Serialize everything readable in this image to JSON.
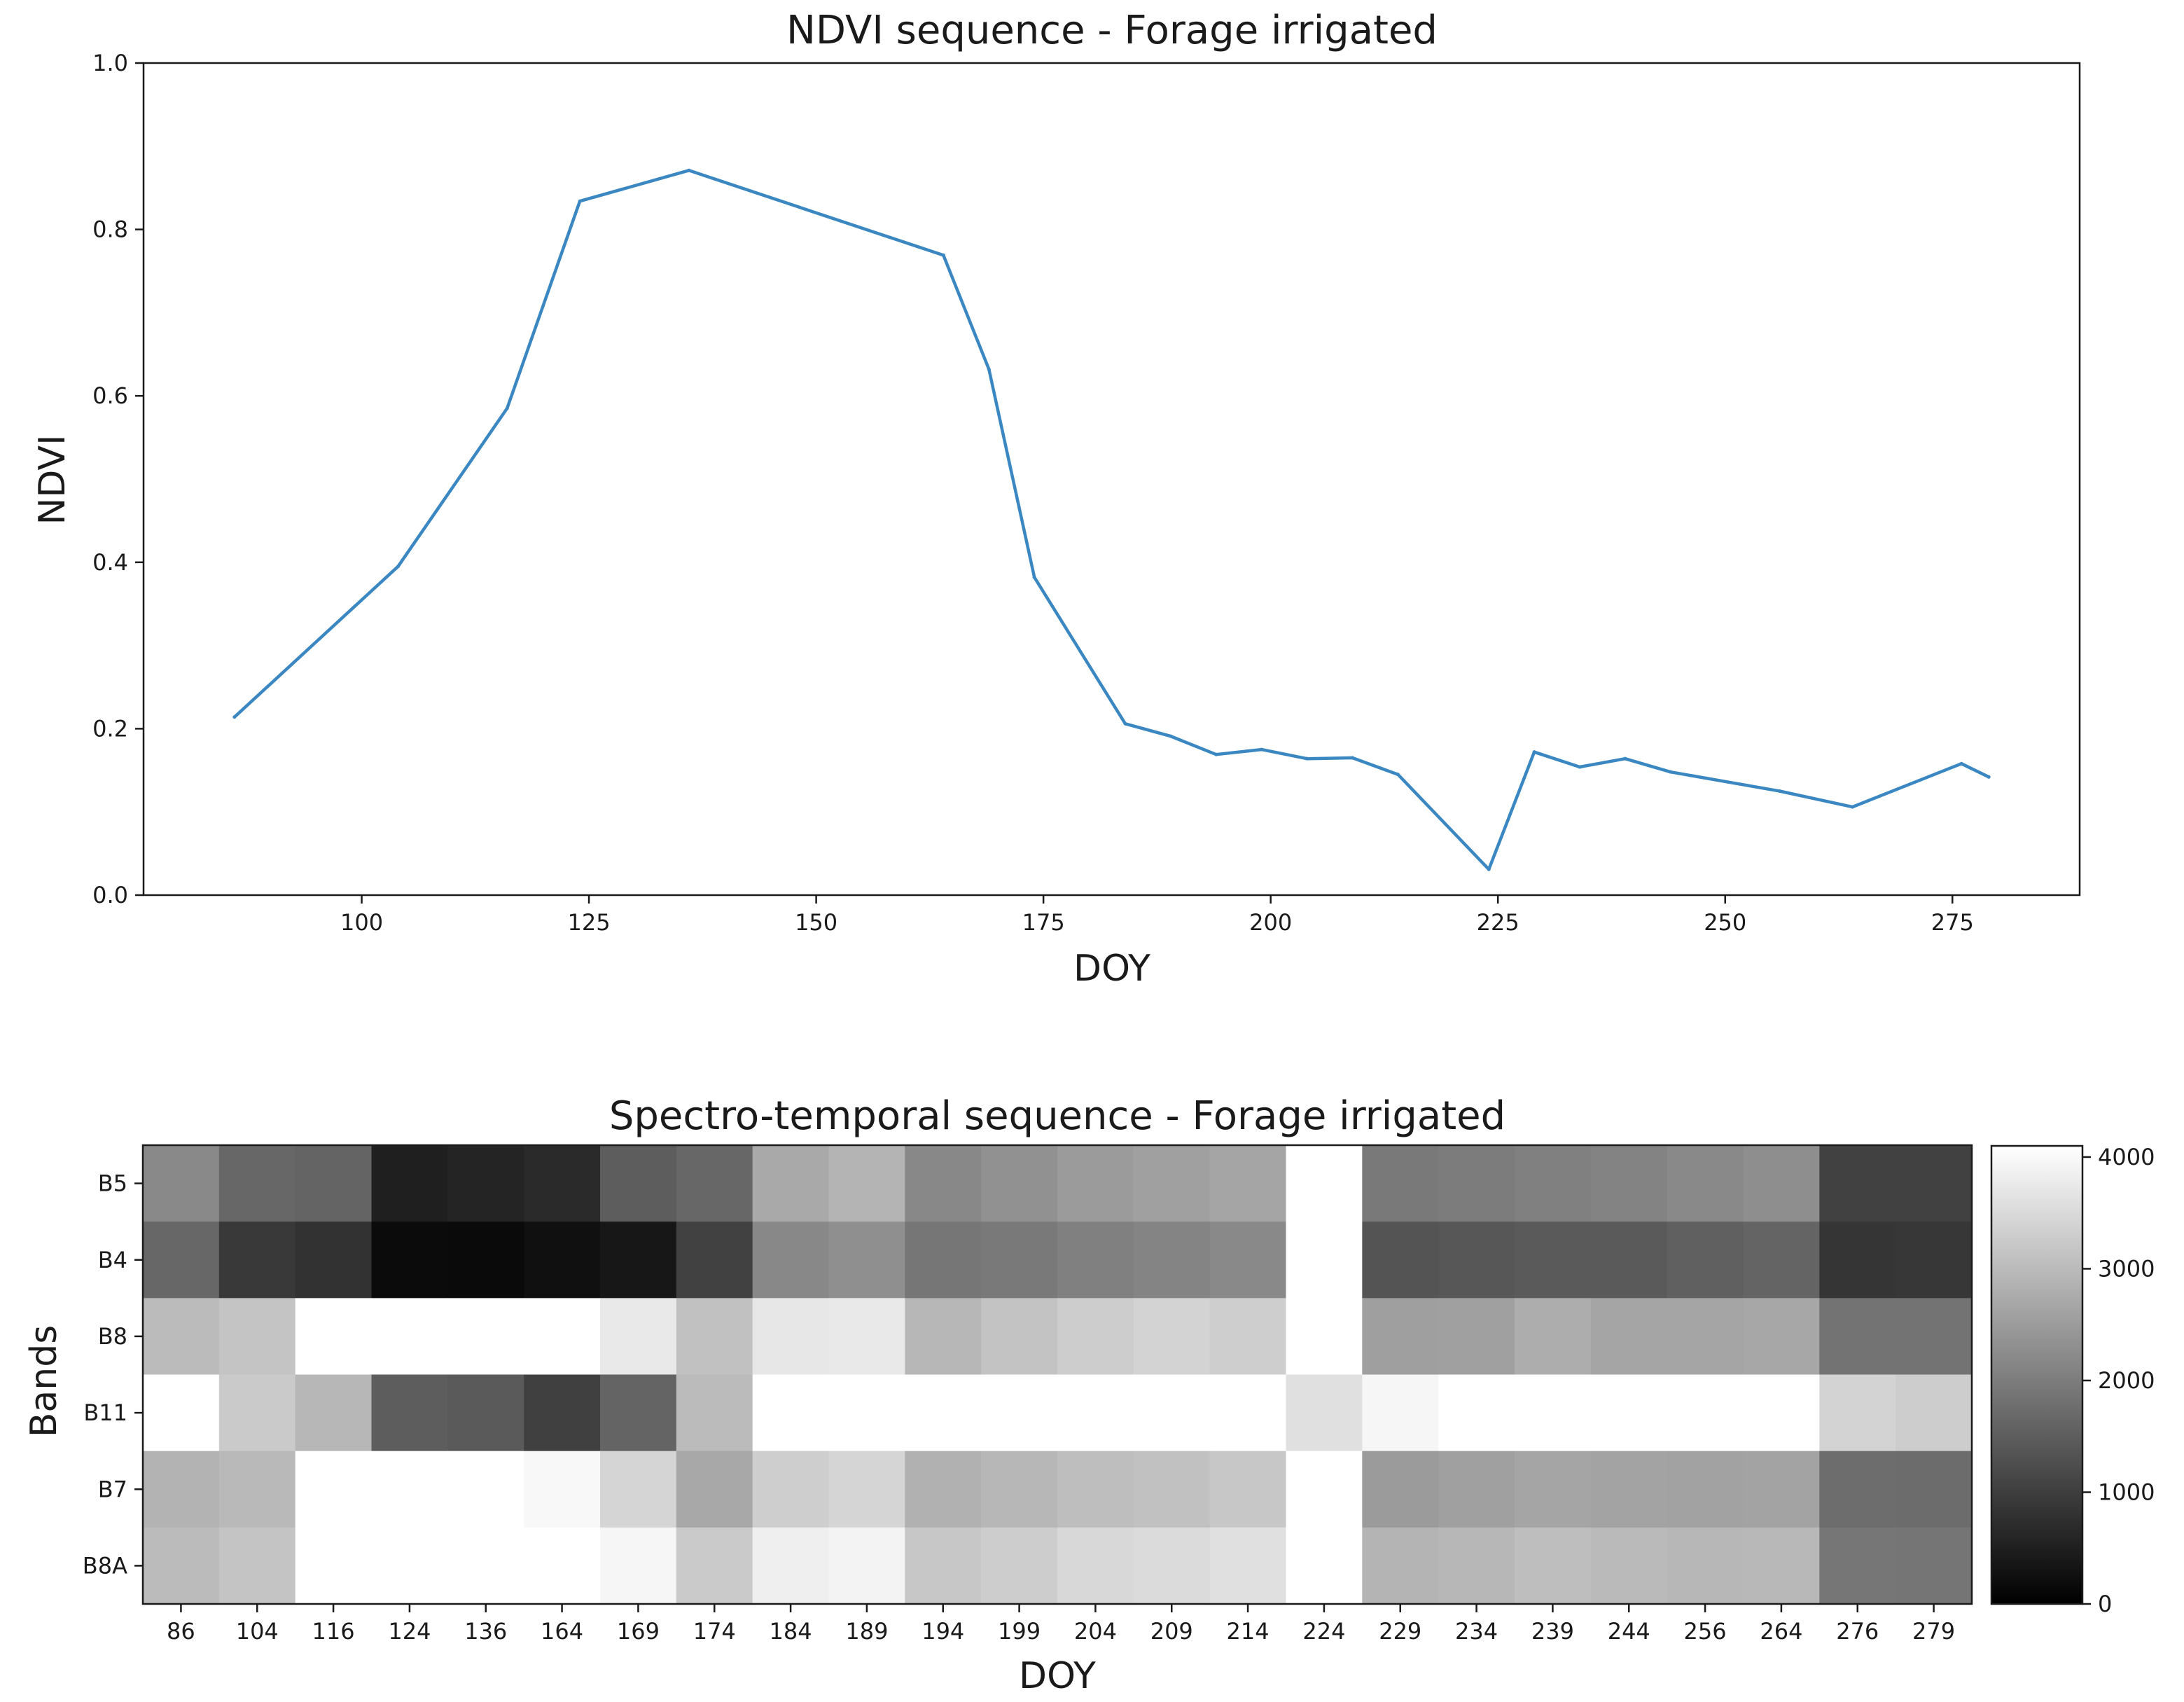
{
  "chart_data": [
    {
      "type": "line",
      "title": "NDVI sequence - Forage irrigated",
      "xlabel": "DOY",
      "ylabel": "NDVI",
      "xlim": [
        76,
        289
      ],
      "ylim": [
        0.0,
        1.0
      ],
      "xticks": [
        100,
        125,
        150,
        175,
        200,
        225,
        250,
        275
      ],
      "yticks": [
        0.0,
        0.2,
        0.4,
        0.6,
        0.8,
        1.0
      ],
      "ytick_labels": [
        "0.0",
        "0.2",
        "0.4",
        "0.6",
        "0.8",
        "1.0"
      ],
      "grid": false,
      "line_color": "#3b87c1",
      "series": [
        {
          "name": "NDVI",
          "x": [
            86,
            104,
            116,
            124,
            136,
            164,
            169,
            174,
            184,
            189,
            194,
            199,
            204,
            209,
            214,
            224,
            229,
            234,
            239,
            244,
            256,
            264,
            276,
            279
          ],
          "y": [
            0.214,
            0.395,
            0.585,
            0.834,
            0.871,
            0.769,
            0.632,
            0.382,
            0.206,
            0.191,
            0.169,
            0.175,
            0.164,
            0.165,
            0.145,
            0.031,
            0.172,
            0.154,
            0.164,
            0.148,
            0.125,
            0.106,
            0.158,
            0.142
          ]
        }
      ]
    },
    {
      "type": "heatmap",
      "title": "Spectro-temporal sequence - Forage irrigated",
      "xlabel": "DOY",
      "ylabel": "Bands",
      "colormap": "gray",
      "x_categories": [
        "86",
        "104",
        "116",
        "124",
        "136",
        "164",
        "169",
        "174",
        "184",
        "189",
        "194",
        "199",
        "204",
        "209",
        "214",
        "224",
        "229",
        "234",
        "239",
        "244",
        "256",
        "264",
        "276",
        "279"
      ],
      "y_categories": [
        "B5",
        "B4",
        "B8",
        "B11",
        "B7",
        "B8A"
      ],
      "color_range": [
        0,
        4100
      ],
      "colorbar_ticks": [
        0,
        1000,
        2000,
        3000,
        4000
      ],
      "colorbar_tick_labels": [
        "0",
        "1000",
        "2000",
        "3000",
        "4000"
      ],
      "values": [
        [
          2200,
          1650,
          1600,
          500,
          580,
          680,
          1500,
          1660,
          2720,
          2900,
          2180,
          2330,
          2500,
          2580,
          2650,
          4100,
          1950,
          2000,
          2050,
          2100,
          2200,
          2280,
          1050,
          1050
        ],
        [
          1650,
          920,
          800,
          170,
          160,
          250,
          370,
          1050,
          2180,
          2300,
          1900,
          1950,
          2050,
          2120,
          2200,
          4100,
          1350,
          1400,
          1450,
          1450,
          1550,
          1600,
          860,
          880
        ],
        [
          3000,
          3150,
          4100,
          4100,
          4100,
          4100,
          3750,
          3100,
          3720,
          3750,
          2950,
          3130,
          3300,
          3400,
          3320,
          4100,
          2550,
          2580,
          2780,
          2660,
          2650,
          2680,
          1850,
          1850
        ],
        [
          4100,
          3250,
          2950,
          1500,
          1450,
          1030,
          1600,
          3000,
          4100,
          4100,
          4100,
          4100,
          4100,
          4100,
          4100,
          3600,
          3950,
          4100,
          4100,
          4100,
          4100,
          4100,
          3400,
          3300
        ],
        [
          2880,
          2980,
          4100,
          4100,
          4100,
          3980,
          3420,
          2700,
          3320,
          3420,
          2850,
          2950,
          3050,
          3100,
          3200,
          4100,
          2500,
          2580,
          2660,
          2620,
          2600,
          2620,
          1750,
          1730
        ],
        [
          3000,
          3150,
          4100,
          4100,
          4100,
          4100,
          3950,
          3250,
          3850,
          3900,
          3200,
          3300,
          3480,
          3520,
          3600,
          4100,
          2900,
          2940,
          3050,
          2990,
          2950,
          2960,
          1900,
          1880
        ]
      ]
    }
  ]
}
